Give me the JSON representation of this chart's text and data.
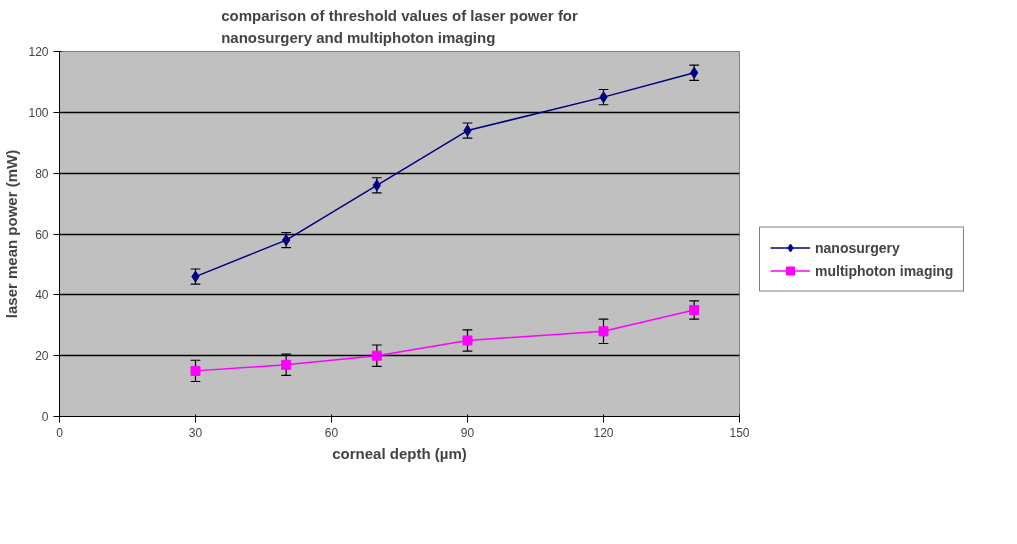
{
  "chart_data": {
    "type": "line",
    "title": "comparison of threshold values of laser power for\nnanosurgery and multiphoton imaging",
    "xlabel": "corneal depth (µm)",
    "ylabel": "laser mean power (mW)",
    "x": [
      30,
      50,
      70,
      90,
      120,
      140
    ],
    "series": [
      {
        "name": "nanosurgery",
        "color": "#000080",
        "marker": "diamond",
        "values": [
          46,
          58,
          76,
          94,
          105,
          113
        ],
        "errors": [
          2.5,
          2.5,
          2.5,
          2.5,
          2.5,
          2.5
        ]
      },
      {
        "name": "multiphoton imaging",
        "color": "#ff00ff",
        "marker": "square",
        "values": [
          15,
          17,
          20,
          25,
          28,
          35
        ],
        "errors": [
          3.5,
          3.5,
          3.5,
          3.5,
          4,
          3
        ]
      }
    ],
    "xlim": [
      0,
      150
    ],
    "xticks": [
      0,
      30,
      60,
      90,
      120,
      150
    ],
    "ylim": [
      0,
      120
    ],
    "yticks": [
      0,
      20,
      40,
      60,
      80,
      100,
      120
    ],
    "grid": "y",
    "legend": "right"
  }
}
